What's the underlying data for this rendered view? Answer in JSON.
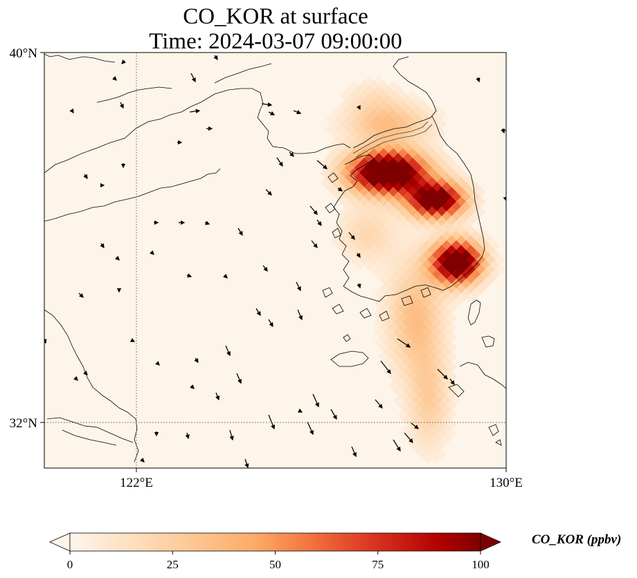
{
  "title": {
    "line1": "CO_KOR at surface",
    "line2": "Time: 2024-03-07 09:00:00"
  },
  "axes": {
    "lat_labels": [
      "40°N",
      "32°N"
    ],
    "lon_labels": [
      "122°E",
      "130°E"
    ],
    "lat_range": [
      31,
      40
    ],
    "lon_range": [
      120,
      130
    ],
    "gridlines": {
      "lon": [
        122
      ],
      "lat": [
        32
      ],
      "style": "dotted"
    }
  },
  "colorbar": {
    "title": "CO_KOR (ppbv)",
    "ticks": [
      "0",
      "25",
      "50",
      "75",
      "100"
    ],
    "min": 0,
    "max": 100,
    "extend": "both",
    "colormap": [
      "#fff5eb",
      "#fdd0a2",
      "#fd8d3c",
      "#d94801",
      "#b10000",
      "#7f0000"
    ]
  },
  "colors": {
    "background": "#fef5ea",
    "coastline": "#000000",
    "high": "#7f0000"
  }
}
